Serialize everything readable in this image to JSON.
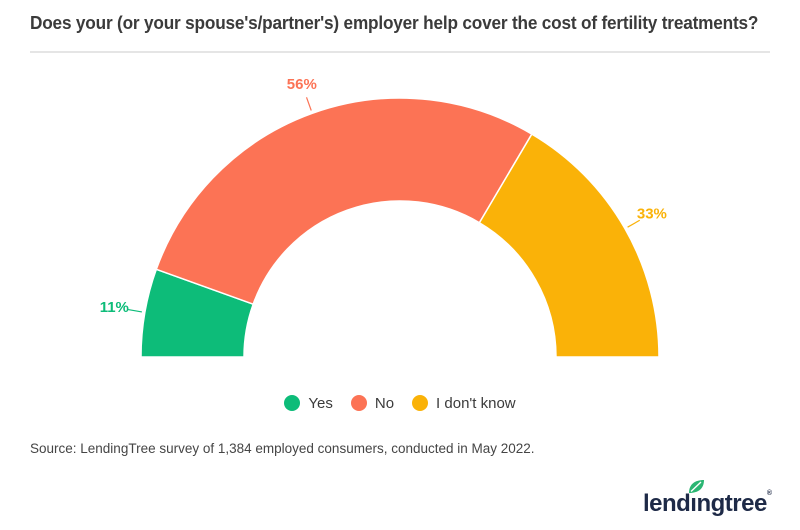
{
  "header": {
    "title": "Does your (or your spouse's/partner's) employer help cover the cost of fertility treatments?"
  },
  "chart_data": {
    "type": "pie",
    "variant": "half-donut",
    "title": "Does your (or your spouse's/partner's) employer help cover the cost of fertility treatments?",
    "categories": [
      "Yes",
      "No",
      "I don't know"
    ],
    "values": [
      11,
      56,
      33
    ],
    "unit": "%",
    "colors": [
      "#0dbc79",
      "#fc7355",
      "#fab208"
    ],
    "data_labels": [
      "11%",
      "56%",
      "33%"
    ],
    "start_angle_deg": 180,
    "end_angle_deg": 0,
    "legend_position": "bottom",
    "grid": false
  },
  "legend": {
    "items": [
      {
        "label": "Yes",
        "color": "#0dbc79"
      },
      {
        "label": "No",
        "color": "#fc7355"
      },
      {
        "label": "I don't know",
        "color": "#fab208"
      }
    ]
  },
  "source": "Source: LendingTree survey of 1,384 employed consumers, conducted in May 2022.",
  "logo": {
    "part1": "lend",
    "dotless_i": "ı",
    "part2": "ngtree",
    "registered": "®",
    "text_color": "#1e2a47",
    "leaf_color": "#2bb673"
  }
}
